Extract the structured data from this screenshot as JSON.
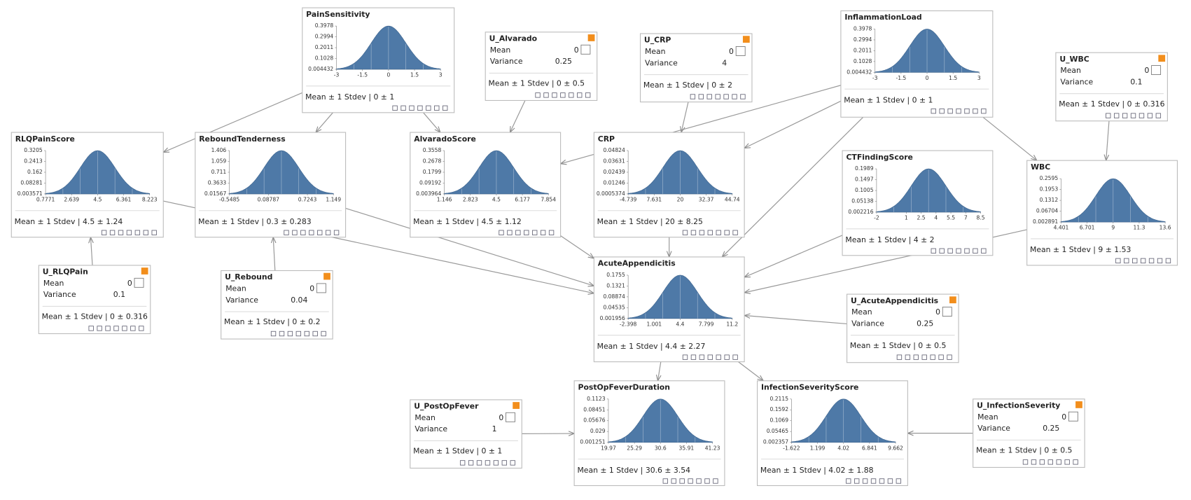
{
  "nodes": [
    {
      "title": "PainSensitivity",
      "yticks": [
        0.3978,
        0.2994,
        0.2011,
        0.1028,
        0.004432
      ],
      "xticks": [
        -3,
        -1.5,
        0,
        1.5,
        3
      ],
      "summary": "Mean ± 1 Stdev | 0 ± 1"
    },
    {
      "title": "InflammationLoad",
      "yticks": [
        0.3978,
        0.2994,
        0.2011,
        0.1028,
        0.004432
      ],
      "xticks": [
        -3,
        -1.5,
        0,
        1.5,
        3
      ],
      "summary": "Mean ± 1 Stdev | 0 ± 1"
    },
    {
      "title": "RLQPainScore",
      "yticks": [
        0.3205,
        0.2413,
        0.162,
        0.08281,
        0.003571
      ],
      "xticks": [
        0.7771,
        2.639,
        4.5,
        6.361,
        8.223
      ],
      "summary": "Mean ± 1 Stdev | 4.5 ± 1.24"
    },
    {
      "title": "ReboundTenderness",
      "yticks": [
        1.406,
        1.059,
        0.711,
        0.3633,
        0.01567
      ],
      "xticks": [
        -0.5485,
        0.08787,
        0.7243,
        1.149
      ],
      "summary": "Mean ± 1 Stdev | 0.3 ± 0.283"
    },
    {
      "title": "AlvaradoScore",
      "yticks": [
        0.3558,
        0.2678,
        0.1799,
        0.09192,
        0.003964
      ],
      "xticks": [
        1.146,
        2.823,
        4.5,
        6.177,
        7.854
      ],
      "summary": "Mean ± 1 Stdev | 4.5 ± 1.12"
    },
    {
      "title": "CRP",
      "yticks": [
        0.04824,
        0.03631,
        0.02439,
        0.01246,
        0.0005374
      ],
      "xticks": [
        -4.739,
        7.631,
        20,
        32.37,
        44.74
      ],
      "summary": "Mean ± 1 Stdev | 20 ± 8.25"
    },
    {
      "title": "CTFindingScore",
      "yticks": [
        0.1989,
        0.1497,
        0.1005,
        0.05138,
        0.002216
      ],
      "xticks": [
        -2,
        1,
        2.5,
        4,
        5.5,
        7,
        8.5
      ],
      "summary": "Mean ± 1 Stdev | 4 ± 2"
    },
    {
      "title": "WBC",
      "yticks": [
        0.2595,
        0.1953,
        0.1312,
        0.06704,
        0.002891
      ],
      "xticks": [
        4.401,
        6.701,
        9,
        11.3,
        13.6
      ],
      "summary": "Mean ± 1 Stdev | 9 ± 1.53"
    },
    {
      "title": "AcuteAppendicitis",
      "yticks": [
        0.1755,
        0.1321,
        0.08874,
        0.04535,
        0.001956
      ],
      "xticks": [
        -2.398,
        1.001,
        4.4,
        7.799,
        11.2
      ],
      "summary": "Mean ± 1 Stdev | 4.4 ± 2.27"
    },
    {
      "title": "PostOpFeverDuration",
      "yticks": [
        0.1123,
        0.08451,
        0.05676,
        0.029,
        0.001251
      ],
      "xticks": [
        19.97,
        25.29,
        30.6,
        35.91,
        41.23
      ],
      "summary": "Mean ± 1 Stdev | 30.6 ± 3.54"
    },
    {
      "title": "InfectionSeverityScore",
      "yticks": [
        0.2115,
        0.1592,
        0.1069,
        0.05465,
        0.002357
      ],
      "xticks": [
        -1.622,
        1.199,
        4.02,
        6.841,
        9.662
      ],
      "summary": "Mean ± 1 Stdev | 4.02 ± 1.88"
    },
    {
      "title": "U_Alvarado",
      "mean_label": "Mean",
      "mean": 0,
      "variance_label": "Variance",
      "variance": 0.25,
      "summary": "Mean ± 1 Stdev | 0 ± 0.5"
    },
    {
      "title": "U_CRP",
      "mean_label": "Mean",
      "mean": 0,
      "variance_label": "Variance",
      "variance": 4,
      "summary": "Mean ± 1 Stdev | 0 ± 2"
    },
    {
      "title": "U_WBC",
      "mean_label": "Mean",
      "mean": 0,
      "variance_label": "Variance",
      "variance": 0.1,
      "summary": "Mean ± 1 Stdev | 0 ± 0.316"
    },
    {
      "title": "U_RLQPain",
      "mean_label": "Mean",
      "mean": 0,
      "variance_label": "Variance",
      "variance": 0.1,
      "summary": "Mean ± 1 Stdev | 0 ± 0.316"
    },
    {
      "title": "U_Rebound",
      "mean_label": "Mean",
      "mean": 0,
      "variance_label": "Variance",
      "variance": 0.04,
      "summary": "Mean ± 1 Stdev | 0 ± 0.2"
    },
    {
      "title": "U_AcuteAppendicitis",
      "mean_label": "Mean",
      "mean": 0,
      "variance_label": "Variance",
      "variance": 0.25,
      "summary": "Mean ± 1 Stdev | 0 ± 0.5"
    },
    {
      "title": "U_PostOpFever",
      "mean_label": "Mean",
      "mean": 0,
      "variance_label": "Variance",
      "variance": 1,
      "summary": "Mean ± 1 Stdev | 0 ± 1"
    },
    {
      "title": "U_InfectionSeverity",
      "mean_label": "Mean",
      "mean": 0,
      "variance_label": "Variance",
      "variance": 0.25,
      "summary": "Mean ± 1 Stdev | 0 ± 0.5"
    }
  ]
}
